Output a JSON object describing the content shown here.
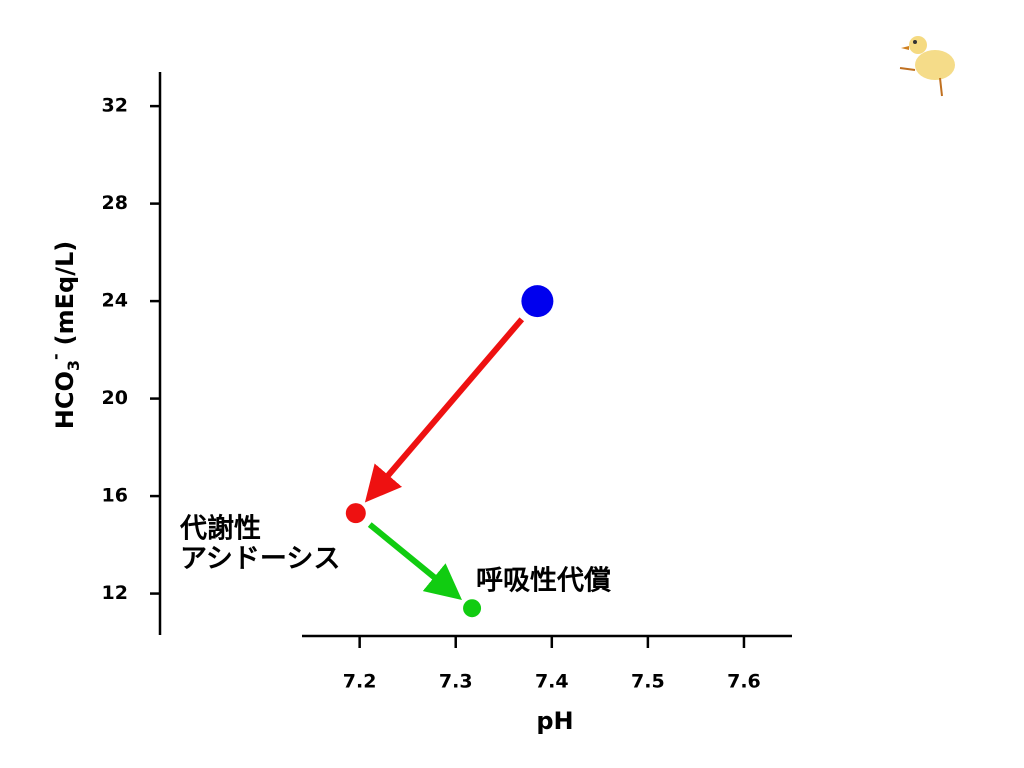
{
  "chart_data": {
    "type": "scatter",
    "x_label": "pH",
    "y_label": {
      "main": "HCO",
      "sub": "3",
      "sup": "-",
      "unit": "(mEq/L)"
    },
    "x": [
      7.385,
      7.196,
      7.317
    ],
    "values": [
      24.0,
      15.3,
      11.4
    ],
    "colors": [
      "#0000ee",
      "#ee1111",
      "#11cc11"
    ],
    "xlim": [
      7.14,
      7.65
    ],
    "xticks": [
      7.2,
      7.3,
      7.4,
      7.5,
      7.6
    ],
    "ylim": [
      10.3,
      33.4
    ],
    "yticks": [
      12,
      16,
      20,
      24,
      28,
      32
    ],
    "arrows": [
      {
        "from": 0,
        "to": 1,
        "color": "#ee1111"
      },
      {
        "from": 1,
        "to": 2,
        "color": "#11cc11"
      }
    ],
    "annotations": [
      {
        "lines": [
          "代謝性",
          "アシドーシス"
        ],
        "point": 1
      },
      {
        "lines": [
          "呼吸性代償"
        ],
        "point": 2
      }
    ]
  }
}
